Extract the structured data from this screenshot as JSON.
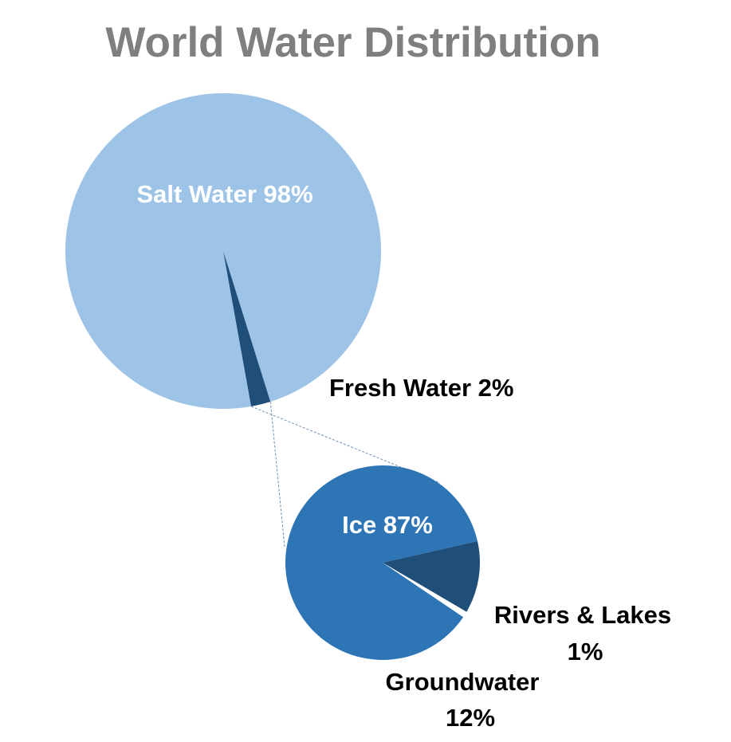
{
  "chart_data": [
    {
      "type": "pie",
      "title": "World Water Distribution",
      "slices": [
        {
          "label": "Salt Water",
          "value": 98,
          "label_text": "Salt Water 98%",
          "color": "#9dc3e6"
        },
        {
          "label": "Fresh Water",
          "value": 2,
          "label_text": "Fresh Water 2%",
          "color": "#1f4e79"
        }
      ]
    },
    {
      "type": "pie",
      "title": "",
      "slices": [
        {
          "label": "Ice",
          "value": 87,
          "label_text": "Ice 87%",
          "color": "#2e75b6"
        },
        {
          "label": "Groundwater",
          "value": 12,
          "label_text_line1": "Groundwater",
          "label_text_line2": "12%",
          "color": "#1f4e79"
        },
        {
          "label": "Rivers & Lakes",
          "value": 1,
          "label_text_line1": "Rivers & Lakes",
          "label_text_line2": "1%",
          "color": "#ffffff"
        }
      ]
    }
  ]
}
